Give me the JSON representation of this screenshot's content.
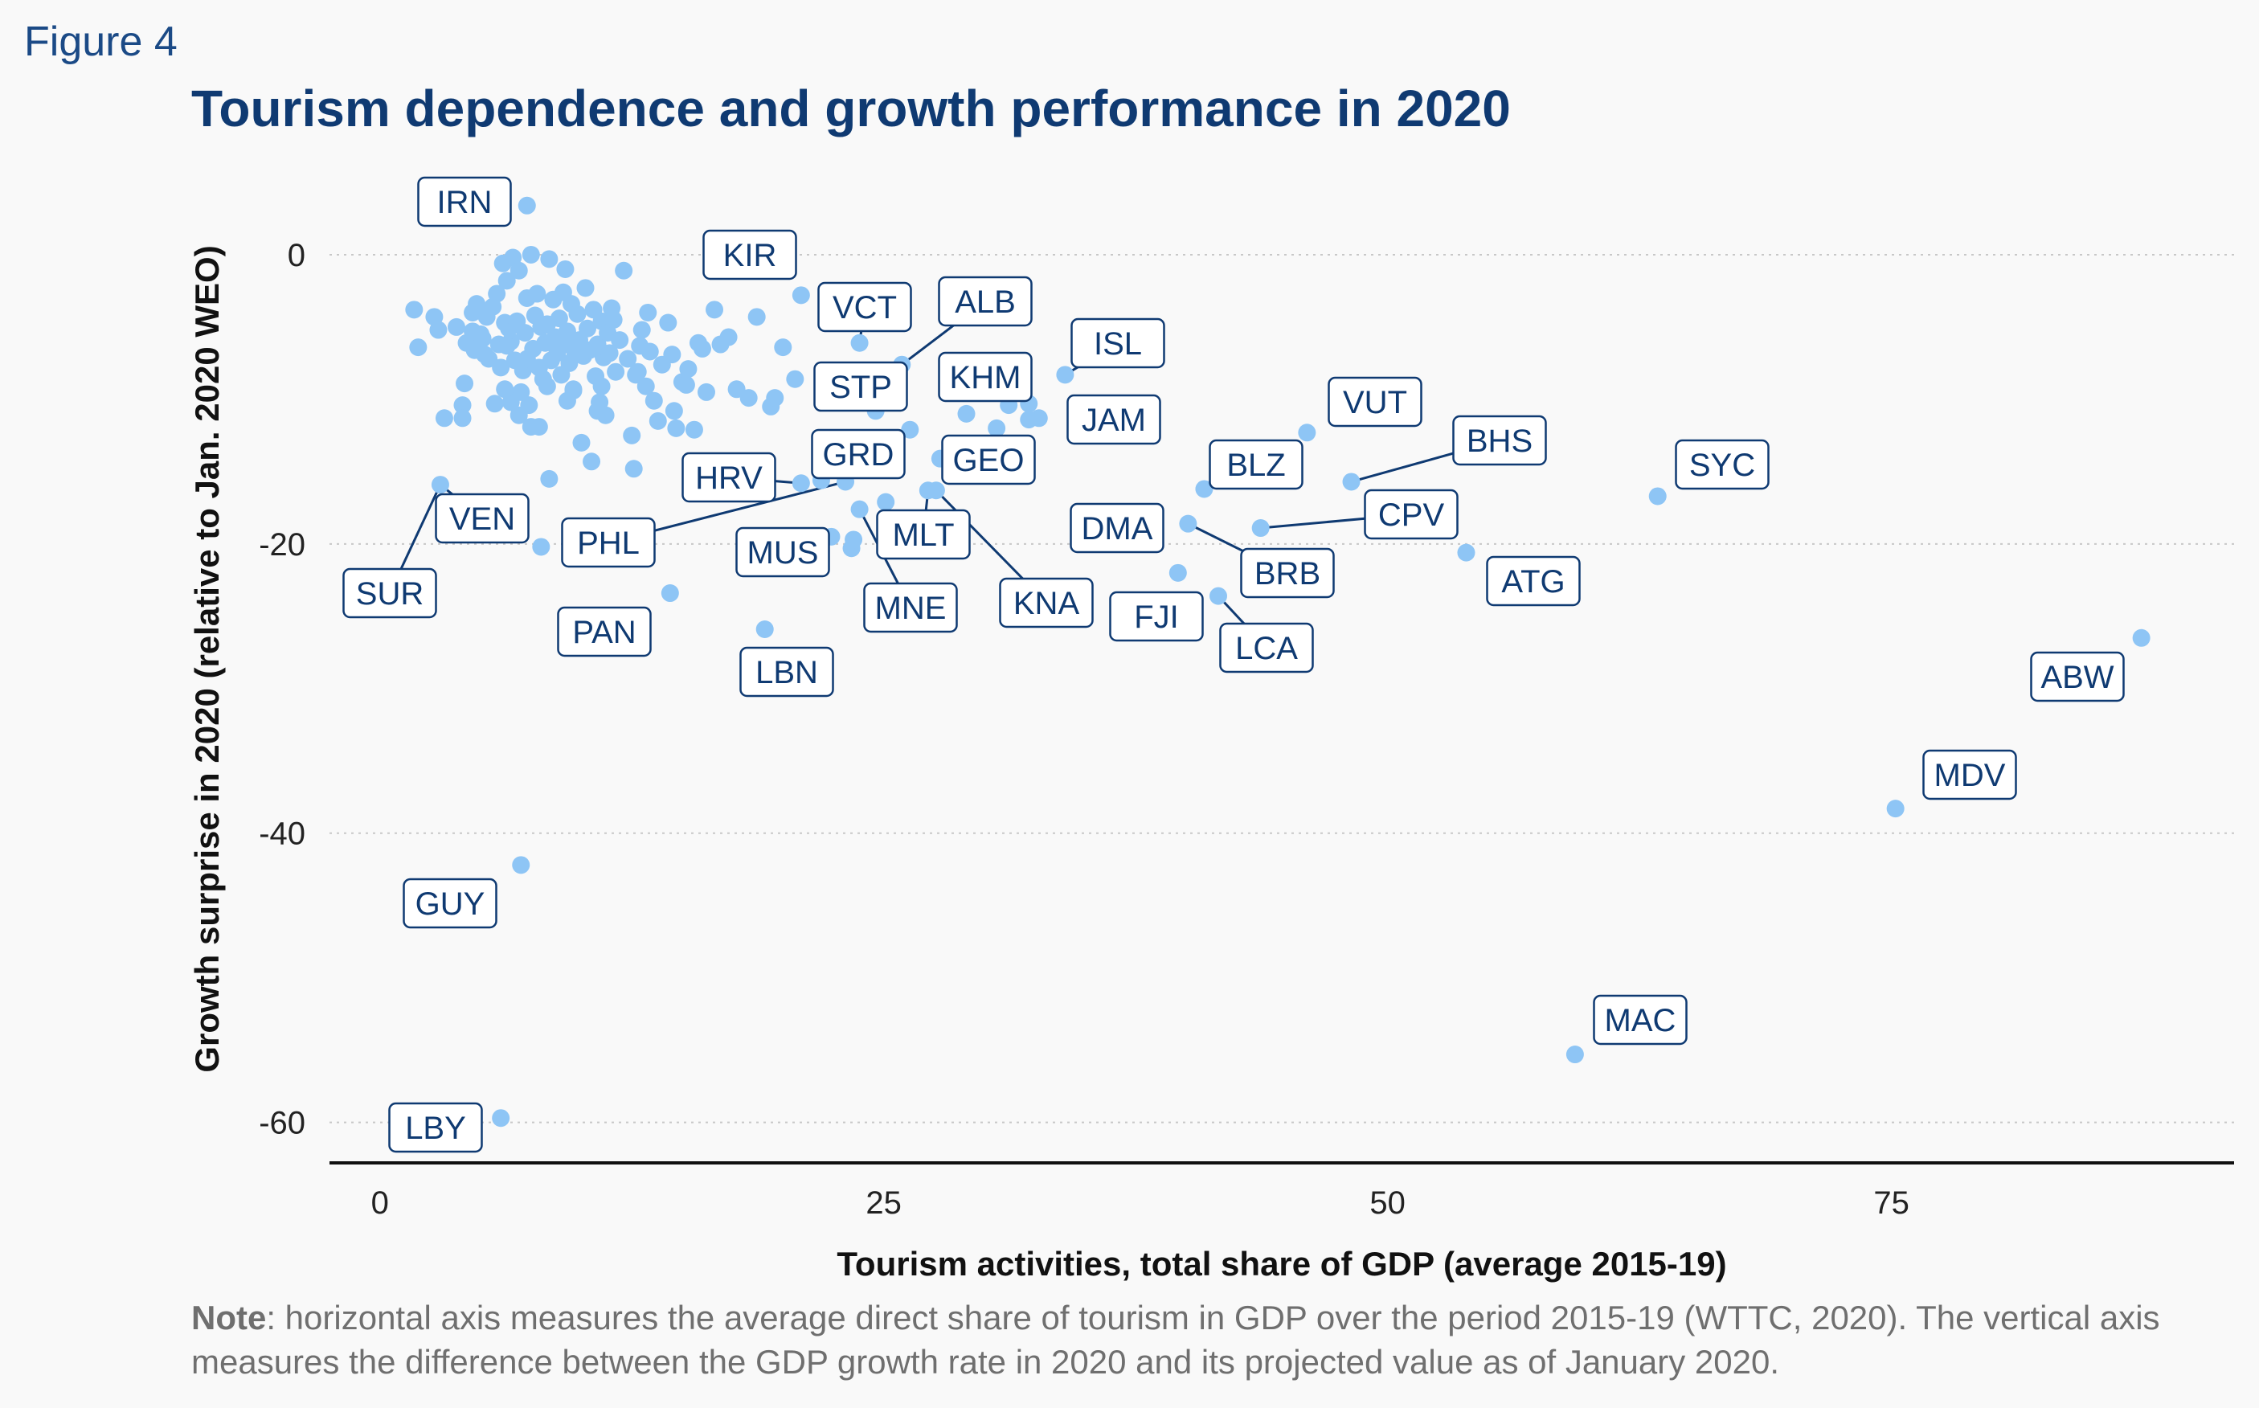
{
  "figure_label": "Figure 4",
  "chart_data": {
    "type": "scatter",
    "title": "Tourism dependence and growth performance in 2020",
    "xlabel": "Tourism activities, total share of GDP (average 2015-19)",
    "ylabel": "Growth surprise in 2020 (relative to Jan. 2020 WEO)",
    "xlim": [
      -2.5,
      92
    ],
    "ylim": [
      -62.8,
      6.5
    ],
    "xticks": [
      "0",
      "25",
      "50",
      "75"
    ],
    "xtick_values": [
      0,
      25,
      50,
      75
    ],
    "yticks": [
      "0",
      "-20",
      "-40",
      "-60"
    ],
    "ytick_values": [
      0,
      -20,
      -40,
      -60
    ],
    "grid": "horizontal dotted",
    "point_color": "#8ec5f5",
    "label_color": "#0f3a72",
    "labeled_points": [
      {
        "code": "IRN",
        "x": 7.3,
        "y": 3.4
      },
      {
        "code": "KIR",
        "x": 20.9,
        "y": -2.8
      },
      {
        "code": "VCT",
        "x": 23.8,
        "y": -6.1
      },
      {
        "code": "ALB",
        "x": 25.9,
        "y": -7.6
      },
      {
        "code": "ISL",
        "x": 34.0,
        "y": -8.3
      },
      {
        "code": "KHM",
        "x": 32.2,
        "y": -10.3
      },
      {
        "code": "JAM",
        "x": 32.7,
        "y": -11.3
      },
      {
        "code": "STP",
        "x": 24.6,
        "y": -10.8
      },
      {
        "code": "VUT",
        "x": 46.0,
        "y": -12.3
      },
      {
        "code": "GEO",
        "x": 29.1,
        "y": -11.0
      },
      {
        "code": "GRD",
        "x": 26.3,
        "y": -12.1
      },
      {
        "code": "HRV",
        "x": 20.9,
        "y": -15.8
      },
      {
        "code": "BLZ",
        "x": 40.9,
        "y": -16.2
      },
      {
        "code": "BHS",
        "x": 48.2,
        "y": -15.7
      },
      {
        "code": "SYC",
        "x": 63.4,
        "y": -16.7
      },
      {
        "code": "VEN",
        "x": 3.0,
        "y": -15.9
      },
      {
        "code": "SUR",
        "x": 3.0,
        "y": -15.9
      },
      {
        "code": "PHL",
        "x": 23.1,
        "y": -15.7
      },
      {
        "code": "MLT",
        "x": 27.2,
        "y": -16.3
      },
      {
        "code": "MUS",
        "x": 23.5,
        "y": -19.7
      },
      {
        "code": "MNE",
        "x": 23.8,
        "y": -17.6
      },
      {
        "code": "KNA",
        "x": 27.6,
        "y": -16.3
      },
      {
        "code": "DMA",
        "x": 40.1,
        "y": -18.6
      },
      {
        "code": "CPV",
        "x": 43.7,
        "y": -18.9
      },
      {
        "code": "BRB",
        "x": 40.1,
        "y": -18.6
      },
      {
        "code": "ATG",
        "x": 53.9,
        "y": -20.6
      },
      {
        "code": "FJI",
        "x": 39.6,
        "y": -22.0
      },
      {
        "code": "LCA",
        "x": 41.6,
        "y": -23.6
      },
      {
        "code": "PAN",
        "x": 14.4,
        "y": -23.4
      },
      {
        "code": "LBN",
        "x": 19.1,
        "y": -25.9
      },
      {
        "code": "ABW",
        "x": 87.4,
        "y": -26.5
      },
      {
        "code": "MDV",
        "x": 75.2,
        "y": -38.3
      },
      {
        "code": "GUY",
        "x": 7.0,
        "y": -42.2
      },
      {
        "code": "MAC",
        "x": 59.3,
        "y": -55.3
      },
      {
        "code": "LBY",
        "x": 6.0,
        "y": -59.7
      }
    ],
    "unlabeled_points": [
      [
        1.7,
        -3.8
      ],
      [
        1.9,
        -6.4
      ],
      [
        2.7,
        -4.3
      ],
      [
        2.9,
        -5.2
      ],
      [
        3.2,
        -11.3
      ],
      [
        3.8,
        -5.0
      ],
      [
        4.1,
        -10.4
      ],
      [
        4.1,
        -11.3
      ],
      [
        4.3,
        -6.1
      ],
      [
        4.6,
        -4.0
      ],
      [
        4.6,
        -5.3
      ],
      [
        4.7,
        -6.6
      ],
      [
        4.8,
        -3.4
      ],
      [
        5.0,
        -5.5
      ],
      [
        5.1,
        -5.8
      ],
      [
        5.2,
        -6.9
      ],
      [
        5.3,
        -4.3
      ],
      [
        5.4,
        -7.2
      ],
      [
        5.6,
        -3.6
      ],
      [
        5.8,
        -2.7
      ],
      [
        5.9,
        -6.2
      ],
      [
        6.0,
        -7.8
      ],
      [
        6.1,
        -0.6
      ],
      [
        6.2,
        -4.7
      ],
      [
        6.3,
        -1.8
      ],
      [
        6.4,
        -5.1
      ],
      [
        6.5,
        -6.0
      ],
      [
        6.5,
        -10.2
      ],
      [
        6.6,
        -0.2
      ],
      [
        6.7,
        -7.3
      ],
      [
        6.8,
        -4.6
      ],
      [
        6.9,
        -1.1
      ],
      [
        7.0,
        -9.5
      ],
      [
        7.1,
        -8.0
      ],
      [
        7.2,
        -5.4
      ],
      [
        7.3,
        -3.0
      ],
      [
        7.3,
        -7.2
      ],
      [
        7.4,
        -10.4
      ],
      [
        7.5,
        0.0
      ],
      [
        7.5,
        -11.9
      ],
      [
        7.6,
        -6.5
      ],
      [
        7.7,
        -4.2
      ],
      [
        7.8,
        -2.7
      ],
      [
        7.9,
        -7.8
      ],
      [
        8.0,
        -5.0
      ],
      [
        8.1,
        -8.6
      ],
      [
        8.2,
        -6.1
      ],
      [
        8.3,
        -4.8
      ],
      [
        8.3,
        -9.1
      ],
      [
        8.4,
        -0.3
      ],
      [
        8.5,
        -7.3
      ],
      [
        8.6,
        -3.1
      ],
      [
        8.7,
        -5.7
      ],
      [
        8.8,
        -6.8
      ],
      [
        8.9,
        -4.4
      ],
      [
        9.0,
        -8.3
      ],
      [
        9.1,
        -2.6
      ],
      [
        9.2,
        -6.2
      ],
      [
        9.3,
        -5.3
      ],
      [
        9.4,
        -7.5
      ],
      [
        9.5,
        -3.4
      ],
      [
        9.6,
        -9.3
      ],
      [
        9.7,
        -6.9
      ],
      [
        9.8,
        -4.1
      ],
      [
        9.9,
        -5.9
      ],
      [
        10.0,
        -13.0
      ],
      [
        10.1,
        -7.0
      ],
      [
        10.2,
        -2.3
      ],
      [
        10.3,
        -5.1
      ],
      [
        10.4,
        -6.6
      ],
      [
        10.5,
        -14.3
      ],
      [
        10.6,
        -3.8
      ],
      [
        10.7,
        -8.4
      ],
      [
        10.8,
        -6.2
      ],
      [
        10.9,
        -10.2
      ],
      [
        11.0,
        -4.6
      ],
      [
        11.1,
        -7.1
      ],
      [
        11.2,
        -11.1
      ],
      [
        11.3,
        -5.4
      ],
      [
        11.4,
        -6.8
      ],
      [
        11.5,
        -3.7
      ],
      [
        11.7,
        -8.1
      ],
      [
        11.9,
        -5.9
      ],
      [
        12.1,
        -1.1
      ],
      [
        12.3,
        -7.2
      ],
      [
        12.5,
        -12.5
      ],
      [
        12.7,
        -8.3
      ],
      [
        12.9,
        -6.3
      ],
      [
        13.2,
        -9.1
      ],
      [
        13.4,
        -6.7
      ],
      [
        13.6,
        -10.1
      ],
      [
        13.8,
        -11.5
      ],
      [
        14.0,
        -7.6
      ],
      [
        14.3,
        -4.7
      ],
      [
        14.5,
        -6.9
      ],
      [
        14.7,
        -12.0
      ],
      [
        15.0,
        -8.8
      ],
      [
        15.3,
        -7.9
      ],
      [
        15.6,
        -12.1
      ],
      [
        15.8,
        -6.1
      ],
      [
        16.2,
        -9.5
      ],
      [
        16.6,
        -3.8
      ],
      [
        16.9,
        -6.2
      ],
      [
        17.3,
        -5.7
      ],
      [
        17.7,
        -9.3
      ],
      [
        18.3,
        -9.9
      ],
      [
        18.7,
        -4.3
      ],
      [
        19.4,
        -10.5
      ],
      [
        20.0,
        -6.4
      ],
      [
        20.6,
        -8.6
      ],
      [
        21.9,
        -15.6
      ],
      [
        22.4,
        -19.5
      ],
      [
        22.9,
        -9.7
      ],
      [
        23.4,
        -20.3
      ],
      [
        24.1,
        -14.7
      ],
      [
        25.1,
        -17.1
      ],
      [
        27.8,
        -14.1
      ],
      [
        30.6,
        -12.0
      ],
      [
        31.2,
        -10.4
      ],
      [
        32.2,
        -11.4
      ],
      [
        12.6,
        -14.8
      ],
      [
        15.2,
        -9.0
      ],
      [
        13.0,
        -5.2
      ],
      [
        11.6,
        -4.5
      ],
      [
        9.6,
        -9.4
      ],
      [
        10.8,
        -10.8
      ],
      [
        8.4,
        -15.5
      ],
      [
        11.0,
        -9.1
      ],
      [
        9.2,
        -1.0
      ],
      [
        6.3,
        -6.3
      ],
      [
        12.8,
        -8.1
      ],
      [
        19.6,
        -9.9
      ],
      [
        22.6,
        -9.6
      ],
      [
        13.3,
        -4.0
      ],
      [
        14.6,
        -10.8
      ],
      [
        6.9,
        -11.1
      ],
      [
        4.2,
        -8.9
      ],
      [
        5.7,
        -10.3
      ],
      [
        6.2,
        -9.3
      ],
      [
        7.9,
        -11.9
      ],
      [
        9.3,
        -10.1
      ],
      [
        8.0,
        -20.2
      ],
      [
        16.0,
        -6.5
      ]
    ]
  }
}
